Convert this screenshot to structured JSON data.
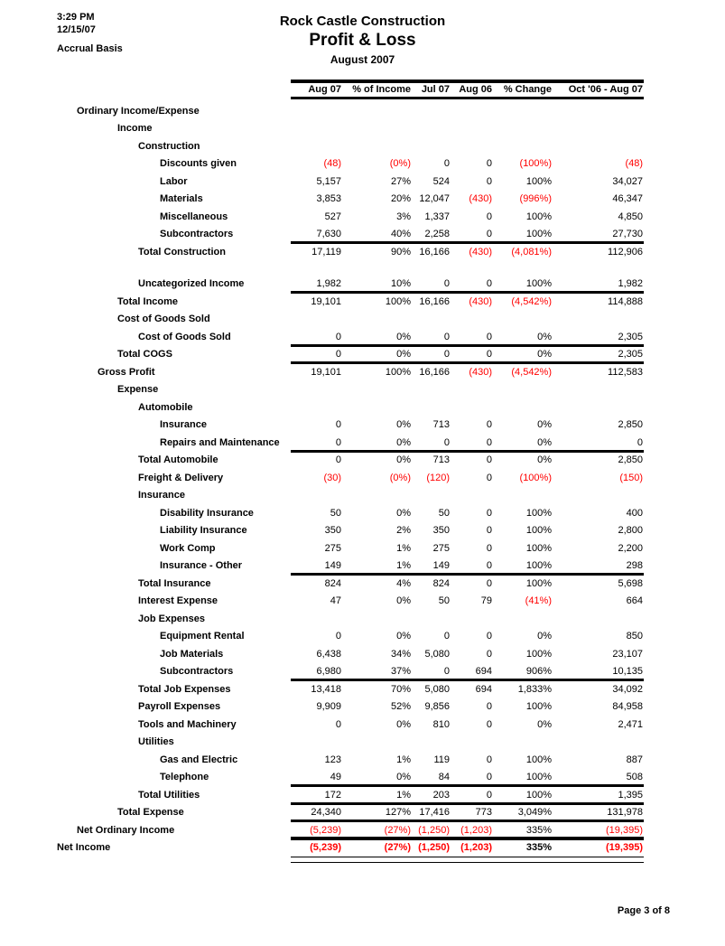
{
  "header": {
    "time": "3:29 PM",
    "date": "12/15/07",
    "basis": "Accrual Basis",
    "company": "Rock Castle Construction",
    "report_title": "Profit & Loss",
    "period": "August 2007"
  },
  "colors": {
    "text": "#000000",
    "negative": "#ff0000",
    "background": "#ffffff"
  },
  "table": {
    "columns": [
      "Aug 07",
      "% of Income",
      "Jul 07",
      "Aug 06",
      "% Change",
      "Oct '06 - Aug 07"
    ],
    "rows": [
      {
        "label": "Ordinary Income/Expense",
        "indent": 1
      },
      {
        "label": "Income",
        "indent": 3
      },
      {
        "label": "Construction",
        "indent": 4
      },
      {
        "label": "Discounts given",
        "indent": 5,
        "values": [
          "(48)",
          "(0%)",
          "0",
          "0",
          "(100%)",
          "(48)"
        ]
      },
      {
        "label": "Labor",
        "indent": 5,
        "values": [
          "5,157",
          "27%",
          "524",
          "0",
          "100%",
          "34,027"
        ]
      },
      {
        "label": "Materials",
        "indent": 5,
        "values": [
          "3,853",
          "20%",
          "12,047",
          "(430)",
          "(996%)",
          "46,347"
        ]
      },
      {
        "label": "Miscellaneous",
        "indent": 5,
        "values": [
          "527",
          "3%",
          "1,337",
          "0",
          "100%",
          "4,850"
        ]
      },
      {
        "label": "Subcontractors",
        "indent": 5,
        "values": [
          "7,630",
          "40%",
          "2,258",
          "0",
          "100%",
          "27,730"
        ]
      },
      {
        "label": "Total Construction",
        "indent": 4,
        "rule_above": "single",
        "values": [
          "17,119",
          "90%",
          "16,166",
          "(430)",
          "(4,081%)",
          "112,906"
        ]
      },
      {
        "spacer": true
      },
      {
        "label": "Uncategorized Income",
        "indent": 4,
        "values": [
          "1,982",
          "10%",
          "0",
          "0",
          "100%",
          "1,982"
        ]
      },
      {
        "label": "Total Income",
        "indent": 3,
        "rule_above": "single",
        "values": [
          "19,101",
          "100%",
          "16,166",
          "(430)",
          "(4,542%)",
          "114,888"
        ]
      },
      {
        "label": "Cost of Goods Sold",
        "indent": 3
      },
      {
        "label": "Cost of Goods Sold",
        "indent": 4,
        "values": [
          "0",
          "0%",
          "0",
          "0",
          "0%",
          "2,305"
        ]
      },
      {
        "label": "Total COGS",
        "indent": 3,
        "rule_above": "single",
        "values": [
          "0",
          "0%",
          "0",
          "0",
          "0%",
          "2,305"
        ]
      },
      {
        "label": "Gross Profit",
        "indent": 2,
        "rule_above": "single",
        "values": [
          "19,101",
          "100%",
          "16,166",
          "(430)",
          "(4,542%)",
          "112,583"
        ]
      },
      {
        "label": "Expense",
        "indent": 3
      },
      {
        "label": "Automobile",
        "indent": 4
      },
      {
        "label": "Insurance",
        "indent": 5,
        "values": [
          "0",
          "0%",
          "713",
          "0",
          "0%",
          "2,850"
        ]
      },
      {
        "label": "Repairs and Maintenance",
        "indent": 5,
        "values": [
          "0",
          "0%",
          "0",
          "0",
          "0%",
          "0"
        ]
      },
      {
        "label": "Total Automobile",
        "indent": 4,
        "rule_above": "single",
        "values": [
          "0",
          "0%",
          "713",
          "0",
          "0%",
          "2,850"
        ]
      },
      {
        "label": "Freight & Delivery",
        "indent": 4,
        "values": [
          "(30)",
          "(0%)",
          "(120)",
          "0",
          "(100%)",
          "(150)"
        ]
      },
      {
        "label": "Insurance",
        "indent": 4
      },
      {
        "label": "Disability Insurance",
        "indent": 5,
        "values": [
          "50",
          "0%",
          "50",
          "0",
          "100%",
          "400"
        ]
      },
      {
        "label": "Liability Insurance",
        "indent": 5,
        "values": [
          "350",
          "2%",
          "350",
          "0",
          "100%",
          "2,800"
        ]
      },
      {
        "label": "Work Comp",
        "indent": 5,
        "values": [
          "275",
          "1%",
          "275",
          "0",
          "100%",
          "2,200"
        ]
      },
      {
        "label": "Insurance - Other",
        "indent": 5,
        "values": [
          "149",
          "1%",
          "149",
          "0",
          "100%",
          "298"
        ]
      },
      {
        "label": "Total Insurance",
        "indent": 4,
        "rule_above": "single",
        "values": [
          "824",
          "4%",
          "824",
          "0",
          "100%",
          "5,698"
        ]
      },
      {
        "label": "Interest Expense",
        "indent": 4,
        "values": [
          "47",
          "0%",
          "50",
          "79",
          "(41%)",
          "664"
        ]
      },
      {
        "label": "Job Expenses",
        "indent": 4
      },
      {
        "label": "Equipment Rental",
        "indent": 5,
        "values": [
          "0",
          "0%",
          "0",
          "0",
          "0%",
          "850"
        ]
      },
      {
        "label": "Job Materials",
        "indent": 5,
        "values": [
          "6,438",
          "34%",
          "5,080",
          "0",
          "100%",
          "23,107"
        ]
      },
      {
        "label": "Subcontractors",
        "indent": 5,
        "values": [
          "6,980",
          "37%",
          "0",
          "694",
          "906%",
          "10,135"
        ]
      },
      {
        "label": "Total Job Expenses",
        "indent": 4,
        "rule_above": "single",
        "values": [
          "13,418",
          "70%",
          "5,080",
          "694",
          "1,833%",
          "34,092"
        ]
      },
      {
        "label": "Payroll Expenses",
        "indent": 4,
        "values": [
          "9,909",
          "52%",
          "9,856",
          "0",
          "100%",
          "84,958"
        ]
      },
      {
        "label": "Tools and Machinery",
        "indent": 4,
        "values": [
          "0",
          "0%",
          "810",
          "0",
          "0%",
          "2,471"
        ]
      },
      {
        "label": "Utilities",
        "indent": 4
      },
      {
        "label": "Gas and Electric",
        "indent": 5,
        "values": [
          "123",
          "1%",
          "119",
          "0",
          "100%",
          "887"
        ]
      },
      {
        "label": "Telephone",
        "indent": 5,
        "values": [
          "49",
          "0%",
          "84",
          "0",
          "100%",
          "508"
        ]
      },
      {
        "label": "Total Utilities",
        "indent": 4,
        "rule_above": "single",
        "values": [
          "172",
          "1%",
          "203",
          "0",
          "100%",
          "1,395"
        ]
      },
      {
        "label": "Total Expense",
        "indent": 3,
        "rule_above": "single",
        "values": [
          "24,340",
          "127%",
          "17,416",
          "773",
          "3,049%",
          "131,978"
        ]
      },
      {
        "label": "Net Ordinary Income",
        "indent": 1,
        "rule_above": "single",
        "values": [
          "(5,239)",
          "(27%)",
          "(1,250)",
          "(1,203)",
          "335%",
          "(19,395)"
        ]
      },
      {
        "label": "Net Income",
        "indent": 0,
        "rule_above": "thick",
        "rule_below": "double",
        "bold": true,
        "values": [
          "(5,239)",
          "(27%)",
          "(1,250)",
          "(1,203)",
          "335%",
          "(19,395)"
        ]
      }
    ]
  },
  "footer": {
    "page": "Page 3 of 8"
  }
}
